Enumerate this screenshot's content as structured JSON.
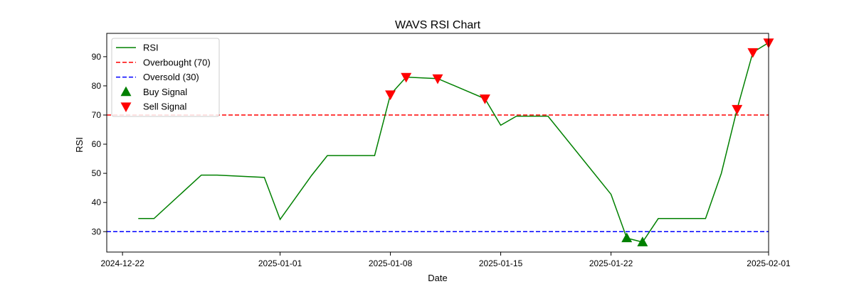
{
  "chart_data": {
    "type": "line",
    "title": "WAVS RSI Chart",
    "xlabel": "Date",
    "ylabel": "RSI",
    "xlim": [
      "2024-12-21",
      "2025-02-01"
    ],
    "ylim": [
      23,
      98
    ],
    "x_ticks": [
      "2024-12-22",
      "2025-01-01",
      "2025-01-08",
      "2025-01-15",
      "2025-01-22",
      "2025-02-01"
    ],
    "y_ticks": [
      30,
      40,
      50,
      60,
      70,
      80,
      90
    ],
    "grid": false,
    "legend_position": "top-left",
    "series": [
      {
        "name": "RSI",
        "color": "#008000",
        "points": [
          [
            "2024-12-23",
            34.5
          ],
          [
            "2024-12-24",
            34.5
          ],
          [
            "2024-12-27",
            49.4
          ],
          [
            "2024-12-28",
            49.4
          ],
          [
            "2024-12-31",
            48.6
          ],
          [
            "2025-01-01",
            34.2
          ],
          [
            "2025-01-03",
            49.3
          ],
          [
            "2025-01-04",
            56.1
          ],
          [
            "2025-01-07",
            56.1
          ],
          [
            "2025-01-08",
            77.0
          ],
          [
            "2025-01-09",
            83.0
          ],
          [
            "2025-01-11",
            82.5
          ],
          [
            "2025-01-14",
            75.6
          ],
          [
            "2025-01-15",
            66.5
          ],
          [
            "2025-01-16",
            69.6
          ],
          [
            "2025-01-18",
            69.6
          ],
          [
            "2025-01-22",
            42.8
          ],
          [
            "2025-01-23",
            27.8
          ],
          [
            "2025-01-24",
            26.4
          ],
          [
            "2025-01-25",
            34.5
          ],
          [
            "2025-01-28",
            34.5
          ],
          [
            "2025-01-29",
            50.0
          ],
          [
            "2025-01-30",
            72.0
          ],
          [
            "2025-01-31",
            91.5
          ],
          [
            "2025-02-01",
            94.8
          ]
        ]
      }
    ],
    "reference_lines": [
      {
        "name": "Overbought (70)",
        "y": 70,
        "color": "#ff0000",
        "style": "dashed"
      },
      {
        "name": "Oversold (30)",
        "y": 30,
        "color": "#0000ff",
        "style": "dashed"
      }
    ],
    "markers": [
      {
        "name": "Buy Signal",
        "shape": "triangle-up",
        "color": "#008000",
        "points": [
          [
            "2025-01-23",
            27.8
          ],
          [
            "2025-01-24",
            26.4
          ]
        ]
      },
      {
        "name": "Sell Signal",
        "shape": "triangle-down",
        "color": "#ff0000",
        "points": [
          [
            "2025-01-08",
            77.0
          ],
          [
            "2025-01-09",
            83.0
          ],
          [
            "2025-01-11",
            82.5
          ],
          [
            "2025-01-14",
            75.6
          ],
          [
            "2025-01-30",
            72.0
          ],
          [
            "2025-01-31",
            91.5
          ],
          [
            "2025-02-01",
            94.8
          ]
        ]
      }
    ],
    "legend": [
      "RSI",
      "Overbought (70)",
      "Oversold (30)",
      "Buy Signal",
      "Sell Signal"
    ]
  }
}
